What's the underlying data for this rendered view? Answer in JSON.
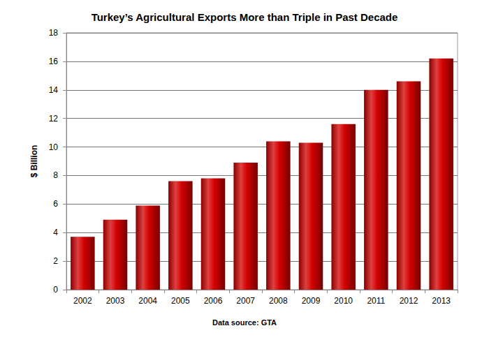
{
  "chart_data": {
    "type": "bar",
    "title": "Turkey’s Agricultural Exports More than Triple in Past Decade",
    "ylabel": "$ Billion",
    "annotation": "Data source: GTA",
    "categories": [
      "2002",
      "2003",
      "2004",
      "2005",
      "2006",
      "2007",
      "2008",
      "2009",
      "2010",
      "2011",
      "2012",
      "2013"
    ],
    "values": [
      3.7,
      4.9,
      5.9,
      7.6,
      7.8,
      8.9,
      10.4,
      10.3,
      11.6,
      14.0,
      14.6,
      16.2
    ],
    "color": "#d40000",
    "ylim": [
      0,
      18
    ],
    "yticks": [
      0,
      2,
      4,
      6,
      8,
      10,
      12,
      14,
      16,
      18
    ],
    "grid": true
  }
}
